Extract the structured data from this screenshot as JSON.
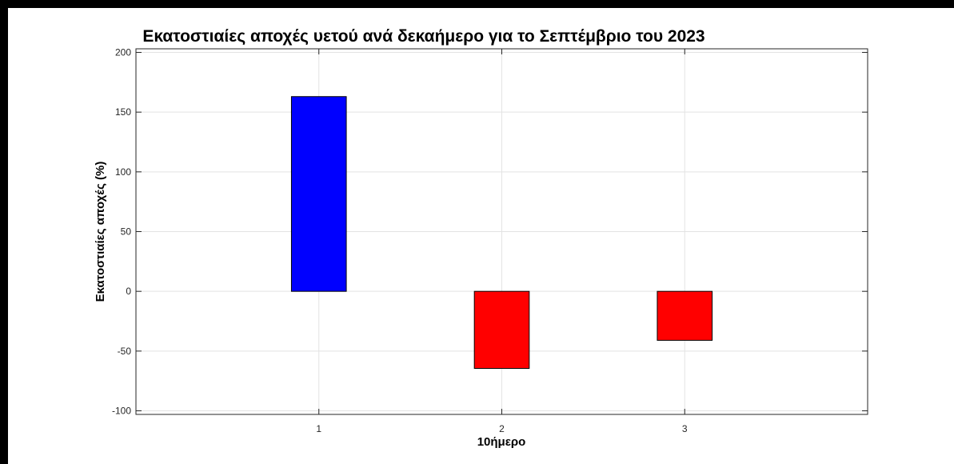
{
  "chart_data": {
    "type": "bar",
    "title": "Εκατοστιαίες αποχές υετού ανά δεκαήμερο για το Σεπτέμβριο του 2023",
    "xlabel": "10ήμερο",
    "ylabel": "Εκατοστιαίες αποχές (%)",
    "categories": [
      "1",
      "2",
      "3"
    ],
    "values": [
      163,
      -64.5,
      -41
    ],
    "bar_colors": [
      "#0000ff",
      "#ff0000",
      "#ff0000"
    ],
    "xlim": [
      0,
      4
    ],
    "ylim": [
      -103,
      203
    ],
    "yticks": [
      -100,
      -50,
      0,
      50,
      100,
      150,
      200
    ],
    "ytick_labels": [
      "-100",
      "-50",
      "0",
      "50",
      "100",
      "150",
      "200"
    ],
    "grid": true,
    "legend": false
  }
}
